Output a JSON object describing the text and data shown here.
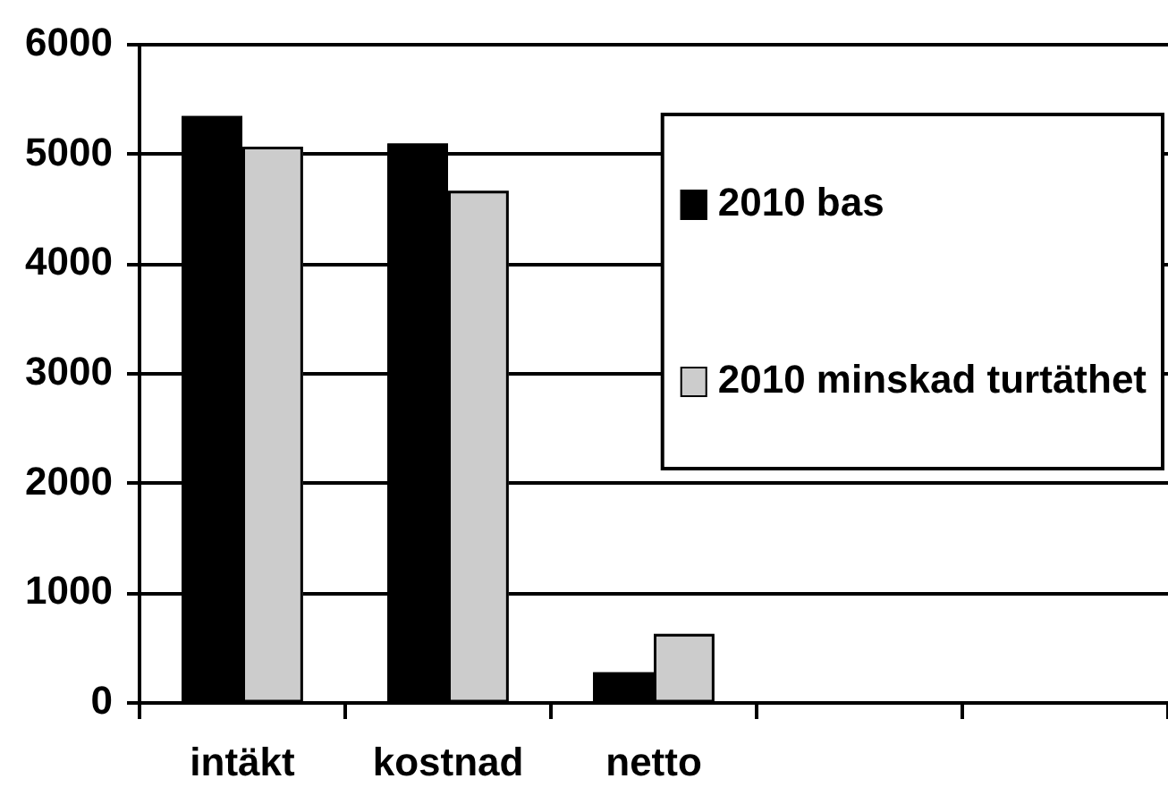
{
  "chart_data": {
    "type": "bar",
    "categories": [
      "intäkt",
      "kostnad",
      "netto",
      null,
      null
    ],
    "series": [
      {
        "name": "2010 bas",
        "color": "#000000",
        "values": [
          5350,
          5100,
          280,
          null,
          null
        ]
      },
      {
        "name": "2010 minskad turtäthet",
        "color": "#cccccc",
        "values": [
          5070,
          4670,
          630,
          null,
          null
        ]
      }
    ],
    "ylim": [
      0,
      6000
    ],
    "yticks": [
      0,
      1000,
      2000,
      3000,
      4000,
      5000,
      6000
    ],
    "grid": "y",
    "legend": "top right"
  }
}
